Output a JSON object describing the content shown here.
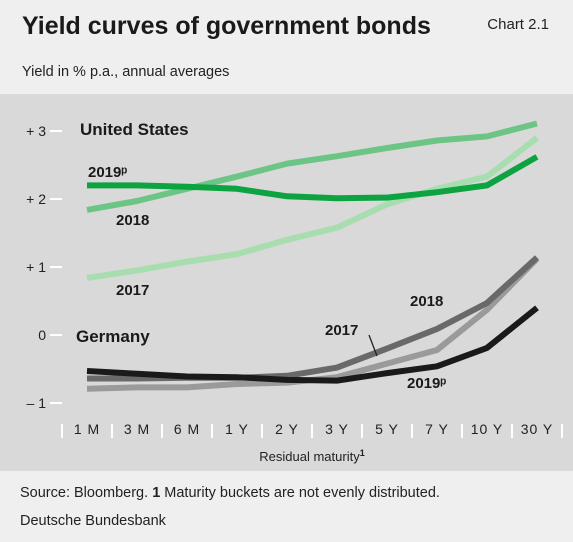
{
  "header": {
    "title": "Yield curves of government bonds",
    "chart_number": "Chart 2.1",
    "subtitle": "Yield in % p.a., annual averages"
  },
  "footer": {
    "source_prefix": "Source: Bloomberg. ",
    "footnote_number": "1",
    "footnote_text": " Maturity buckets are not evenly distributed.",
    "publisher": "Deutsche Bundesbank"
  },
  "chart_data": {
    "type": "line",
    "xlabel": "Residual maturity",
    "xlabel_superscript": "1",
    "categories": [
      "1 M",
      "3 M",
      "6 M",
      "1 Y",
      "2 Y",
      "3 Y",
      "5 Y",
      "7 Y",
      "10 Y",
      "30 Y"
    ],
    "ylim": [
      -1.2,
      3.35
    ],
    "yticks": [
      {
        "value": 3,
        "label": "+ 3"
      },
      {
        "value": 2,
        "label": "+ 2"
      },
      {
        "value": 1,
        "label": "+ 1"
      },
      {
        "value": 0,
        "label": "0"
      },
      {
        "value": -1,
        "label": "– 1"
      }
    ],
    "grid": false,
    "group_labels": [
      "United States",
      "Germany"
    ],
    "series": [
      {
        "name": "2017",
        "group": "United States",
        "color": "#a8ddb0",
        "values": [
          0.84,
          0.95,
          1.08,
          1.19,
          1.4,
          1.58,
          1.92,
          2.15,
          2.33,
          2.9
        ]
      },
      {
        "name": "2018",
        "group": "United States",
        "color": "#6cc485",
        "values": [
          1.84,
          1.97,
          2.15,
          2.33,
          2.52,
          2.63,
          2.75,
          2.86,
          2.92,
          3.11
        ]
      },
      {
        "name": "2019ᵖ",
        "group": "United States",
        "color": "#0da341",
        "values": [
          2.2,
          2.2,
          2.18,
          2.15,
          2.04,
          2.01,
          2.02,
          2.1,
          2.2,
          2.62
        ]
      },
      {
        "name": "2017",
        "group": "Germany",
        "color": "#9a9a9a",
        "values": [
          -0.79,
          -0.77,
          -0.77,
          -0.72,
          -0.7,
          -0.62,
          -0.42,
          -0.22,
          0.37,
          1.12
        ]
      },
      {
        "name": "2018",
        "group": "Germany",
        "color": "#696969",
        "values": [
          -0.64,
          -0.64,
          -0.63,
          -0.63,
          -0.6,
          -0.48,
          -0.2,
          0.09,
          0.47,
          1.14
        ]
      },
      {
        "name": "2019ᵖ",
        "group": "Germany",
        "color": "#1a1a1a",
        "values": [
          -0.53,
          -0.57,
          -0.61,
          -0.62,
          -0.66,
          -0.67,
          -0.56,
          -0.46,
          -0.19,
          0.4
        ]
      }
    ]
  }
}
